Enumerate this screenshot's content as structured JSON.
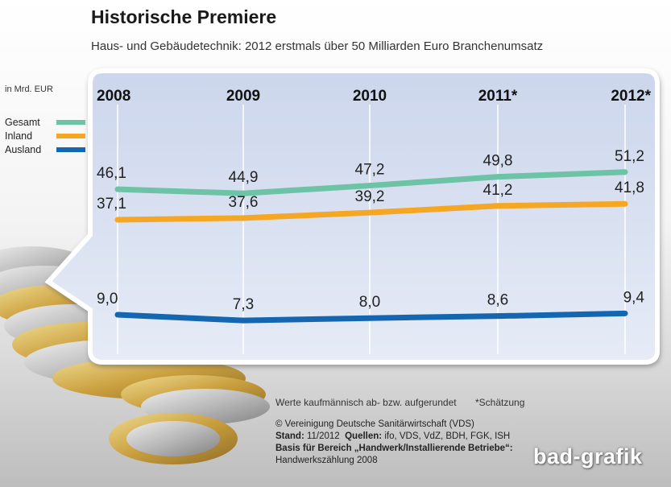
{
  "header": {
    "title": "Historische Premiere",
    "subtitle": "Haus- und Gebäudetechnik: 2012 erstmals über 50 Milliarden Euro Branchenumsatz"
  },
  "unit_label": "in Mrd. EUR",
  "legend": [
    {
      "label": "Gesamt",
      "color": "#6dc3a5"
    },
    {
      "label": "Inland",
      "color": "#f5a623"
    },
    {
      "label": "Ausland",
      "color": "#1466b0"
    }
  ],
  "chart_data": {
    "type": "line",
    "x": [
      "2008",
      "2009",
      "2010",
      "2011*",
      "2012*"
    ],
    "series": [
      {
        "name": "Gesamt",
        "values": [
          46.1,
          44.9,
          47.2,
          49.8,
          51.2
        ],
        "labels": [
          "46,1",
          "44,9",
          "47,2",
          "49,8",
          "51,2"
        ],
        "color": "#6dc3a5"
      },
      {
        "name": "Inland",
        "values": [
          37.1,
          37.6,
          39.2,
          41.2,
          41.8
        ],
        "labels": [
          "37,1",
          "37,6",
          "39,2",
          "41,2",
          "41,8"
        ],
        "color": "#f5a623"
      },
      {
        "name": "Ausland",
        "values": [
          9.0,
          7.3,
          8.0,
          8.6,
          9.4
        ],
        "labels": [
          "9,0",
          "7,3",
          "8,0",
          "8,6",
          "9,4"
        ],
        "color": "#1466b0"
      }
    ],
    "ylabel": "in Mrd. EUR",
    "grid": true
  },
  "notes": {
    "rounding": "Werte kaufmännisch ab- bzw. aufgerundet",
    "estimate": "*Schätzung"
  },
  "sources": {
    "copyright": "© Vereinigung Deutsche Sanitärwirtschaft (VDS)",
    "stand_label": "Stand:",
    "stand_value": "11/2012",
    "quellen_label": "Quellen:",
    "quellen_value": "ifo, VDS, VdZ, BDH, FGK, ISH",
    "basis_label": "Basis für Bereich „Handwerk/Installierende Betriebe“:",
    "basis_value": "Handwerkszählung 2008"
  },
  "logo": "bad-grafik"
}
